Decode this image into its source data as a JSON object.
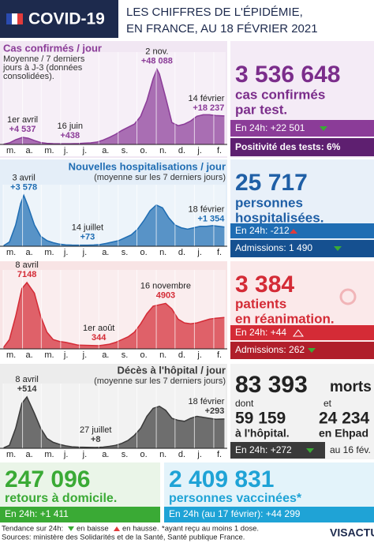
{
  "header": {
    "title": "COVID-19",
    "subtitle": [
      "LES CHIFFRES DE L'ÉPIDÉMIE,",
      "EN FRANCE, AU 18 FÉVRIER 2021"
    ]
  },
  "chart_data": [
    {
      "type": "area",
      "title": "Cas confirmés / jour",
      "subtitle": [
        "Moyenne / 7 derniers",
        "jours à J-3 (données",
        "consolidées)."
      ],
      "color": "#8b3c98",
      "x": [
        0,
        10,
        20,
        31,
        40,
        50,
        60,
        70,
        80,
        90,
        100,
        107,
        120,
        130,
        140,
        150,
        160,
        170,
        180,
        190,
        200,
        210,
        220,
        230,
        240,
        246,
        250,
        260,
        270,
        280,
        290,
        300,
        310,
        320,
        330,
        340,
        354
      ],
      "values": [
        100,
        1000,
        3000,
        4537,
        4000,
        2500,
        1200,
        700,
        500,
        450,
        440,
        438,
        550,
        800,
        1000,
        1500,
        2800,
        4500,
        6500,
        9000,
        11000,
        13000,
        18000,
        28000,
        42000,
        48088,
        45000,
        30000,
        14000,
        12000,
        13000,
        15000,
        18000,
        19000,
        19000,
        18500,
        18237
      ],
      "xlim": [
        0,
        356
      ],
      "ylim": [
        0,
        56000
      ],
      "xticks": [
        {
          "value": 0,
          "label": "m."
        },
        {
          "value": 31,
          "label": "a."
        },
        {
          "value": 61,
          "label": "m."
        },
        {
          "value": 92,
          "label": "j."
        },
        {
          "value": 122,
          "label": "j."
        },
        {
          "value": 153,
          "label": "a."
        },
        {
          "value": 184,
          "label": "s."
        },
        {
          "value": 214,
          "label": "o."
        },
        {
          "value": 245,
          "label": "n."
        },
        {
          "value": 275,
          "label": "d."
        },
        {
          "value": 306,
          "label": "j."
        },
        {
          "value": 337,
          "label": "f."
        }
      ],
      "annotations": [
        {
          "date": "1er avril",
          "value": 4537,
          "label": "+4 537"
        },
        {
          "date": "16 juin",
          "value": 438,
          "label": "+438"
        },
        {
          "date": "2 nov.",
          "value": 48088,
          "label": "+48 088"
        },
        {
          "date": "14 février",
          "value": 18237,
          "label": "+18 237"
        }
      ]
    },
    {
      "type": "area",
      "title": "Nouvelles hospitalisations / jour",
      "subtitle": [
        "(moyenne sur les 7 derniers jours)"
      ],
      "color": "#1f6db3",
      "x": [
        0,
        10,
        20,
        28,
        33,
        40,
        50,
        60,
        70,
        80,
        90,
        100,
        110,
        135,
        145,
        155,
        165,
        175,
        185,
        195,
        205,
        215,
        225,
        235,
        245,
        255,
        265,
        275,
        285,
        295,
        305,
        315,
        325,
        335,
        345,
        354
      ],
      "values": [
        20,
        300,
        1500,
        3000,
        3578,
        2800,
        1500,
        700,
        400,
        250,
        150,
        100,
        80,
        73,
        90,
        120,
        200,
        300,
        400,
        600,
        800,
        1200,
        1800,
        2500,
        2900,
        2700,
        2000,
        1500,
        1300,
        1200,
        1300,
        1400,
        1400,
        1450,
        1400,
        1354
      ],
      "xlim": [
        0,
        356
      ],
      "ylim": [
        0,
        4000
      ],
      "xticks": [
        {
          "value": 0,
          "label": "m."
        },
        {
          "value": 31,
          "label": "a."
        },
        {
          "value": 61,
          "label": "m."
        },
        {
          "value": 92,
          "label": "j."
        },
        {
          "value": 122,
          "label": "j."
        },
        {
          "value": 153,
          "label": "a."
        },
        {
          "value": 184,
          "label": "s."
        },
        {
          "value": 214,
          "label": "o."
        },
        {
          "value": 245,
          "label": "n."
        },
        {
          "value": 275,
          "label": "d."
        },
        {
          "value": 306,
          "label": "j."
        },
        {
          "value": 337,
          "label": "f."
        }
      ],
      "annotations": [
        {
          "date": "3 avril",
          "value": 3578,
          "label": "+3 578"
        },
        {
          "date": "14 juillet",
          "value": 73,
          "label": "+73"
        },
        {
          "date": "18 février",
          "value": 1354,
          "label": "+1 354"
        }
      ]
    },
    {
      "type": "area",
      "color": "#d42b36",
      "x": [
        0,
        10,
        20,
        30,
        38,
        50,
        60,
        70,
        80,
        90,
        100,
        110,
        120,
        153,
        160,
        170,
        180,
        190,
        200,
        210,
        220,
        230,
        240,
        260,
        270,
        280,
        290,
        300,
        310,
        320,
        330,
        340,
        354
      ],
      "values": [
        100,
        1000,
        3500,
        6500,
        7148,
        6000,
        3500,
        1800,
        1000,
        800,
        700,
        550,
        400,
        344,
        400,
        500,
        700,
        1000,
        1300,
        1800,
        2700,
        3800,
        4600,
        4903,
        4300,
        3200,
        2800,
        2700,
        2800,
        3000,
        3200,
        3300,
        3384
      ],
      "xlim": [
        0,
        356
      ],
      "ylim": [
        0,
        8000
      ],
      "xticks": [
        {
          "value": 0,
          "label": "m."
        },
        {
          "value": 31,
          "label": "a."
        },
        {
          "value": 61,
          "label": "m."
        },
        {
          "value": 92,
          "label": "j."
        },
        {
          "value": 122,
          "label": "j."
        },
        {
          "value": 153,
          "label": "a."
        },
        {
          "value": 184,
          "label": "s."
        },
        {
          "value": 214,
          "label": "o."
        },
        {
          "value": 245,
          "label": "n."
        },
        {
          "value": 275,
          "label": "d."
        },
        {
          "value": 306,
          "label": "j."
        },
        {
          "value": 337,
          "label": "f."
        }
      ],
      "annotations": [
        {
          "date": "8 avril",
          "value": 7148,
          "label": "7148"
        },
        {
          "date": "16 novembre",
          "value": 4903,
          "label": "4903"
        },
        {
          "date": "1er août",
          "value": 344,
          "label": "344"
        }
      ]
    },
    {
      "type": "area",
      "title": "Décès à l'hôpital / jour",
      "subtitle": [
        "(moyenne sur les 7 derniers jours)"
      ],
      "color": "#3a3a3a",
      "x": [
        0,
        10,
        20,
        30,
        38,
        50,
        60,
        70,
        80,
        90,
        100,
        110,
        120,
        148,
        160,
        170,
        180,
        190,
        200,
        210,
        220,
        230,
        240,
        250,
        260,
        270,
        280,
        290,
        300,
        310,
        320,
        330,
        340,
        354
      ],
      "values": [
        2,
        30,
        200,
        450,
        514,
        350,
        200,
        100,
        60,
        40,
        25,
        15,
        12,
        8,
        12,
        20,
        30,
        50,
        80,
        130,
        200,
        320,
        400,
        420,
        380,
        300,
        280,
        270,
        300,
        320,
        310,
        300,
        290,
        293
      ],
      "xlim": [
        0,
        356
      ],
      "ylim": [
        0,
        600
      ],
      "xticks": [
        {
          "value": 0,
          "label": "m."
        },
        {
          "value": 31,
          "label": "a."
        },
        {
          "value": 61,
          "label": "m."
        },
        {
          "value": 92,
          "label": "j."
        },
        {
          "value": 122,
          "label": "j."
        },
        {
          "value": 153,
          "label": "a."
        },
        {
          "value": 184,
          "label": "s."
        },
        {
          "value": 214,
          "label": "o."
        },
        {
          "value": 245,
          "label": "n."
        },
        {
          "value": 275,
          "label": "d."
        },
        {
          "value": 306,
          "label": "j."
        },
        {
          "value": 337,
          "label": "f."
        }
      ],
      "annotations": [
        {
          "date": "8 avril",
          "value": 514,
          "label": "+514"
        },
        {
          "date": "27 juillet",
          "value": 8,
          "label": "+8"
        },
        {
          "date": "18 février",
          "value": 293,
          "label": "+293"
        }
      ]
    }
  ],
  "stats": {
    "cases": {
      "value": "3 536 648",
      "label": [
        "cas confirmés",
        "par test."
      ],
      "day": "En 24h: +22 501",
      "extra": "Positivité des tests: 6%"
    },
    "hosp": {
      "value": "25 717",
      "label": [
        "personnes",
        "hospitalisées."
      ],
      "day": "En 24h: -212",
      "extra": "Admissions: 1 490"
    },
    "icu": {
      "value": "3 384",
      "label": [
        "patients",
        "en réanimation."
      ],
      "day": "En 24h: +44",
      "extra": "Admissions: 262"
    },
    "deaths": {
      "value": "83 393",
      "unit": "morts",
      "hospital": {
        "prefix": "dont",
        "value": "59 159",
        "label": "à l'hôpital."
      },
      "ehpad": {
        "prefix": "et",
        "value": "24 234",
        "label": "en Ehpad"
      },
      "day": "En 24h: +272",
      "date": "au 16 fév."
    },
    "returns": {
      "value": "247 096",
      "label": "retours à domicile.",
      "day": "En 24h: +1 411"
    },
    "vaccines": {
      "value": "2 409 831",
      "label": "personnes vaccinées*",
      "day": "En 24h (au 17 février): +44 299"
    }
  },
  "footer": {
    "legend": "Tendance sur 24h:",
    "down": "en baisse",
    "up": "en hausse.",
    "note": "*ayant reçu au moins 1 dose.",
    "sources": "Sources: ministère des Solidarités et de la Santé, Santé publique France.",
    "logo": "VISACTU"
  }
}
